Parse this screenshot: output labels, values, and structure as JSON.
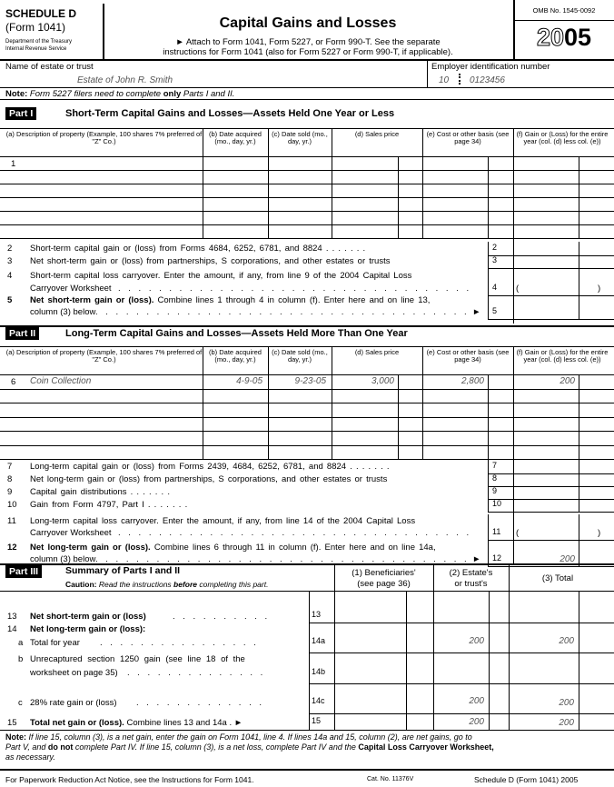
{
  "header": {
    "schedule": "SCHEDULE D",
    "form": "(Form 1041)",
    "dept1": "Department of the Treasury",
    "dept2": "Internal Revenue Service",
    "title": "Capital Gains and Losses",
    "attach1": "► Attach to Form 1041, Form 5227, or Form 990-T. See the separate",
    "attach2": "instructions for Form 1041 (also for Form 5227 or Form 990-T, if applicable).",
    "omb": "OMB No. 1545-0092",
    "year_outline": "20",
    "year_bold": "05"
  },
  "identity": {
    "name_label": "Name of estate or trust",
    "name_value": "Estate of John R. Smith",
    "ein_label": "Employer identification number",
    "ein_prefix": "10",
    "ein_suffix": "0123456"
  },
  "note_top": {
    "bold": "Note:",
    "text1": "Form 5227 filers need to complete ",
    "bold2": "only",
    "text2": " Parts I and II."
  },
  "columns": {
    "a": "(a) Description of property (Example, 100 shares 7% preferred of \"Z\" Co.)",
    "b": "(b) Date acquired (mo., day, yr.)",
    "c": "(c) Date sold (mo., day, yr.)",
    "d": "(d) Sales price",
    "e": "(e) Cost or other basis (see page 34)",
    "f": "(f) Gain or (Loss) for the entire year (col. (d) less col. (e))"
  },
  "part1": {
    "label": "Part I",
    "title": "Short-Term Capital Gains and Losses—Assets Held One Year or Less",
    "row1_num": "1",
    "lines": [
      {
        "num": "2",
        "text": "Short-term capital gain or (loss) from Forms 4684, 6252, 6781, and 8824",
        "box": "2"
      },
      {
        "num": "3",
        "text": "Net short-term gain or (loss) from partnerships, S corporations, and other estates or trusts",
        "box": "3"
      },
      {
        "num": "4",
        "text": "Short-term capital loss carryover. Enter the amount, if any, from line 9 of the 2004 Capital Loss",
        "text2": "Carryover Worksheet",
        "box": "4"
      },
      {
        "num": "5",
        "bold": "Net short-term gain or (loss).",
        "text": " Combine lines 1 through 4 in column (f). Enter here and on line 13,",
        "text2": "column (3) below",
        "box": "5"
      }
    ]
  },
  "part2": {
    "label": "Part II",
    "title": "Long-Term Capital Gains and Losses—Assets Held More Than One Year",
    "row6": {
      "num": "6",
      "description": "Coin Collection",
      "acquired": "4-9-05",
      "sold": "9-23-05",
      "sales_price": "3,000",
      "cost": "2,800",
      "gain": "200"
    },
    "lines": [
      {
        "num": "7",
        "text": "Long-term capital gain or (loss) from Forms 2439, 4684, 6252, 6781, and 8824",
        "box": "7"
      },
      {
        "num": "8",
        "text": "Net long-term gain or (loss) from partnerships, S corporations, and other estates or trusts",
        "box": "8"
      },
      {
        "num": "9",
        "text": "Capital gain distributions",
        "box": "9"
      },
      {
        "num": "10",
        "text": "Gain from Form 4797, Part I",
        "box": "10"
      },
      {
        "num": "11",
        "text": "Long-term capital loss carryover. Enter the amount, if any, from line 14 of the 2004 Capital Loss",
        "text2": "Carryover Worksheet",
        "box": "11"
      },
      {
        "num": "12",
        "bold": "Net long-term gain or (loss).",
        "text": " Combine lines 6 through 11 in column (f). Enter here and on line 14a,",
        "text2": "column (3) below",
        "box": "12",
        "value": "200"
      }
    ]
  },
  "part3": {
    "label": "Part III",
    "title": "Summary of Parts I and II",
    "caution_bold": "Caution:",
    "caution": " Read the instructions ",
    "caution_b2": "before",
    "caution2": " completing this part.",
    "col1": "(1) Beneficiaries'",
    "col1b": "(see page 36)",
    "col2": "(2) Estate's",
    "col2b": "or trust's",
    "col3": "(3) Total",
    "l13": {
      "num": "13",
      "text": "Net short-term gain or (loss)",
      "box": "13"
    },
    "l14": {
      "num": "14",
      "text": "Net long-term gain or (loss):"
    },
    "l14a": {
      "num": "a",
      "text": "Total for year",
      "box": "14a",
      "col2": "200",
      "col3": "200"
    },
    "l14b": {
      "num": "b",
      "text": "Unrecaptured section 1250 gain (see line 18 of the",
      "text2": "worksheet on page 35)",
      "box": "14b"
    },
    "l14c": {
      "num": "c",
      "text": "28% rate gain or (loss)",
      "box": "14c",
      "col2": "200",
      "col3": "200"
    },
    "l15": {
      "num": "15",
      "bold": "Total net gain or (loss).",
      "text": " Combine lines 13 and 14a",
      "box": "15",
      "col2": "200",
      "col3": "200"
    }
  },
  "note_bottom": {
    "line1": "If line 15, column (3), is a net gain, enter the gain on Form 1041, line 4. If lines 14a and 15, column (2), are net gains, go to",
    "line2a": "Part V, and ",
    "line2b": "do not",
    "line2c": " complete Part IV. If line 15, column (3), is a net loss, complete Part IV and the ",
    "line2d": "Capital Loss Carryover Worksheet,",
    "line3": "as necessary.",
    "label": "Note:"
  },
  "footer": {
    "paperwork": "For Paperwork Reduction Act Notice, see the Instructions for Form 1041.",
    "cat": "Cat. No. 11376V",
    "form": "Schedule D (Form 1041) 2005"
  },
  "icons": {
    "arrow": "arrow-right-icon"
  }
}
